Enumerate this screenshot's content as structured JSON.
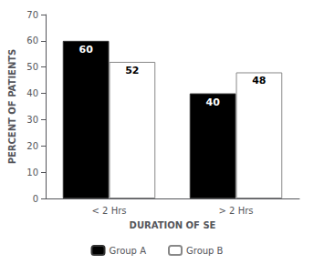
{
  "chart_data": {
    "type": "bar",
    "categories": [
      "< 2 Hrs",
      "> 2 Hrs"
    ],
    "series": [
      {
        "name": "Group A",
        "color": "#000000",
        "values": [
          60,
          40
        ]
      },
      {
        "name": "Group B",
        "color": "#ffffff",
        "values": [
          52,
          48
        ]
      }
    ],
    "xlabel": "DURATION OF SE",
    "ylabel": "PERCENT OF PATIENTS",
    "ylim": [
      0,
      70
    ],
    "yticks": [
      0,
      10,
      20,
      30,
      40,
      50,
      60,
      70
    ],
    "grid": false,
    "legend": "bottom",
    "data_labels": true
  }
}
